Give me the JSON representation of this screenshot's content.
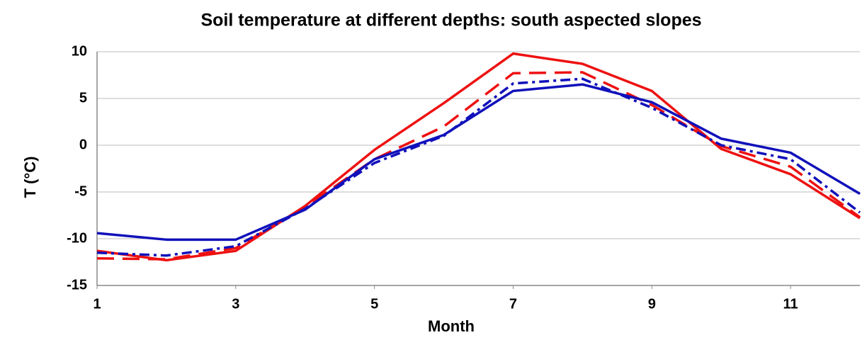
{
  "chart_data": {
    "type": "line",
    "title": "Soil temperature at different depths: south aspected slopes",
    "x_label": "Month",
    "y_label": "T (°C)",
    "x": [
      1,
      2,
      3,
      4,
      5,
      6,
      7,
      8,
      9,
      10,
      11,
      12
    ],
    "xlim": [
      1,
      12
    ],
    "xticks": [
      1,
      3,
      5,
      7,
      9,
      11
    ],
    "ylim": [
      -15,
      10
    ],
    "yticks": [
      -15,
      -10,
      -5,
      0,
      5,
      10
    ],
    "grid": true,
    "series": [
      {
        "color": "#ee1111",
        "dash": "solid",
        "values": [
          -11.3,
          -12.3,
          -11.3,
          -6.5,
          -0.5,
          4.5,
          9.8,
          8.7,
          5.8,
          -0.4,
          -3.1,
          -7.8
        ]
      },
      {
        "color": "#ee1111",
        "dash": "dashed",
        "values": [
          -12.1,
          -12.2,
          -11.0,
          -6.6,
          -1.5,
          2.0,
          7.7,
          7.8,
          4.3,
          -0.1,
          -2.3,
          -7.7
        ]
      },
      {
        "color": "#1111bb",
        "dash": "dashdot",
        "values": [
          -11.5,
          -11.8,
          -10.8,
          -6.8,
          -1.9,
          1.0,
          6.6,
          7.1,
          4.0,
          0.0,
          -1.5,
          -7.2
        ]
      },
      {
        "color": "#1111bb",
        "dash": "solid",
        "values": [
          -9.4,
          -10.1,
          -10.1,
          -6.9,
          -1.5,
          1.1,
          5.8,
          6.5,
          4.6,
          0.7,
          -0.8,
          -5.2
        ]
      }
    ]
  }
}
